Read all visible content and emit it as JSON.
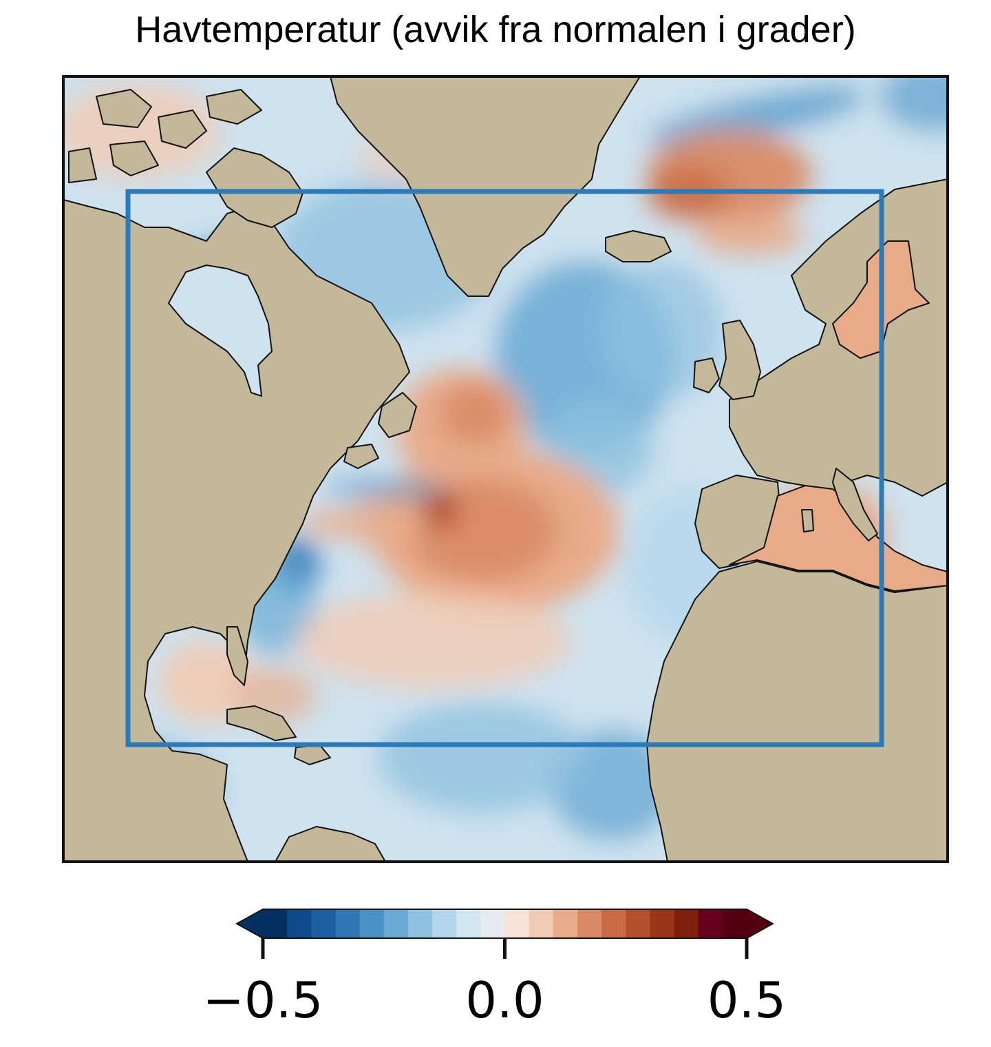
{
  "title": "Havtemperatur (avvik fra normalen i grader)",
  "map": {
    "region": "North Atlantic",
    "land_color": "#c4b89a",
    "coast_color": "#111111",
    "frame_color": "#111111",
    "highlight_box_color": "#2b7bba"
  },
  "colorbar": {
    "min": -0.5,
    "max": 0.5,
    "extend": "both",
    "colors": [
      "#053061",
      "#0f4a8a",
      "#1d5fa0",
      "#2f78b5",
      "#4a92c6",
      "#6aa9d4",
      "#8fc2e0",
      "#b3d6ea",
      "#d2e5f0",
      "#e7ebef",
      "#f6e3d8",
      "#f1cab3",
      "#e7ab8a",
      "#d98a66",
      "#c96b46",
      "#b4502c",
      "#9b3518",
      "#7f1f0e",
      "#67001f",
      "#550010"
    ],
    "ticks": [
      {
        "value": -0.5,
        "label": "−0.5"
      },
      {
        "value": 0.0,
        "label": "0.0"
      },
      {
        "value": 0.5,
        "label": "0.5"
      }
    ]
  }
}
